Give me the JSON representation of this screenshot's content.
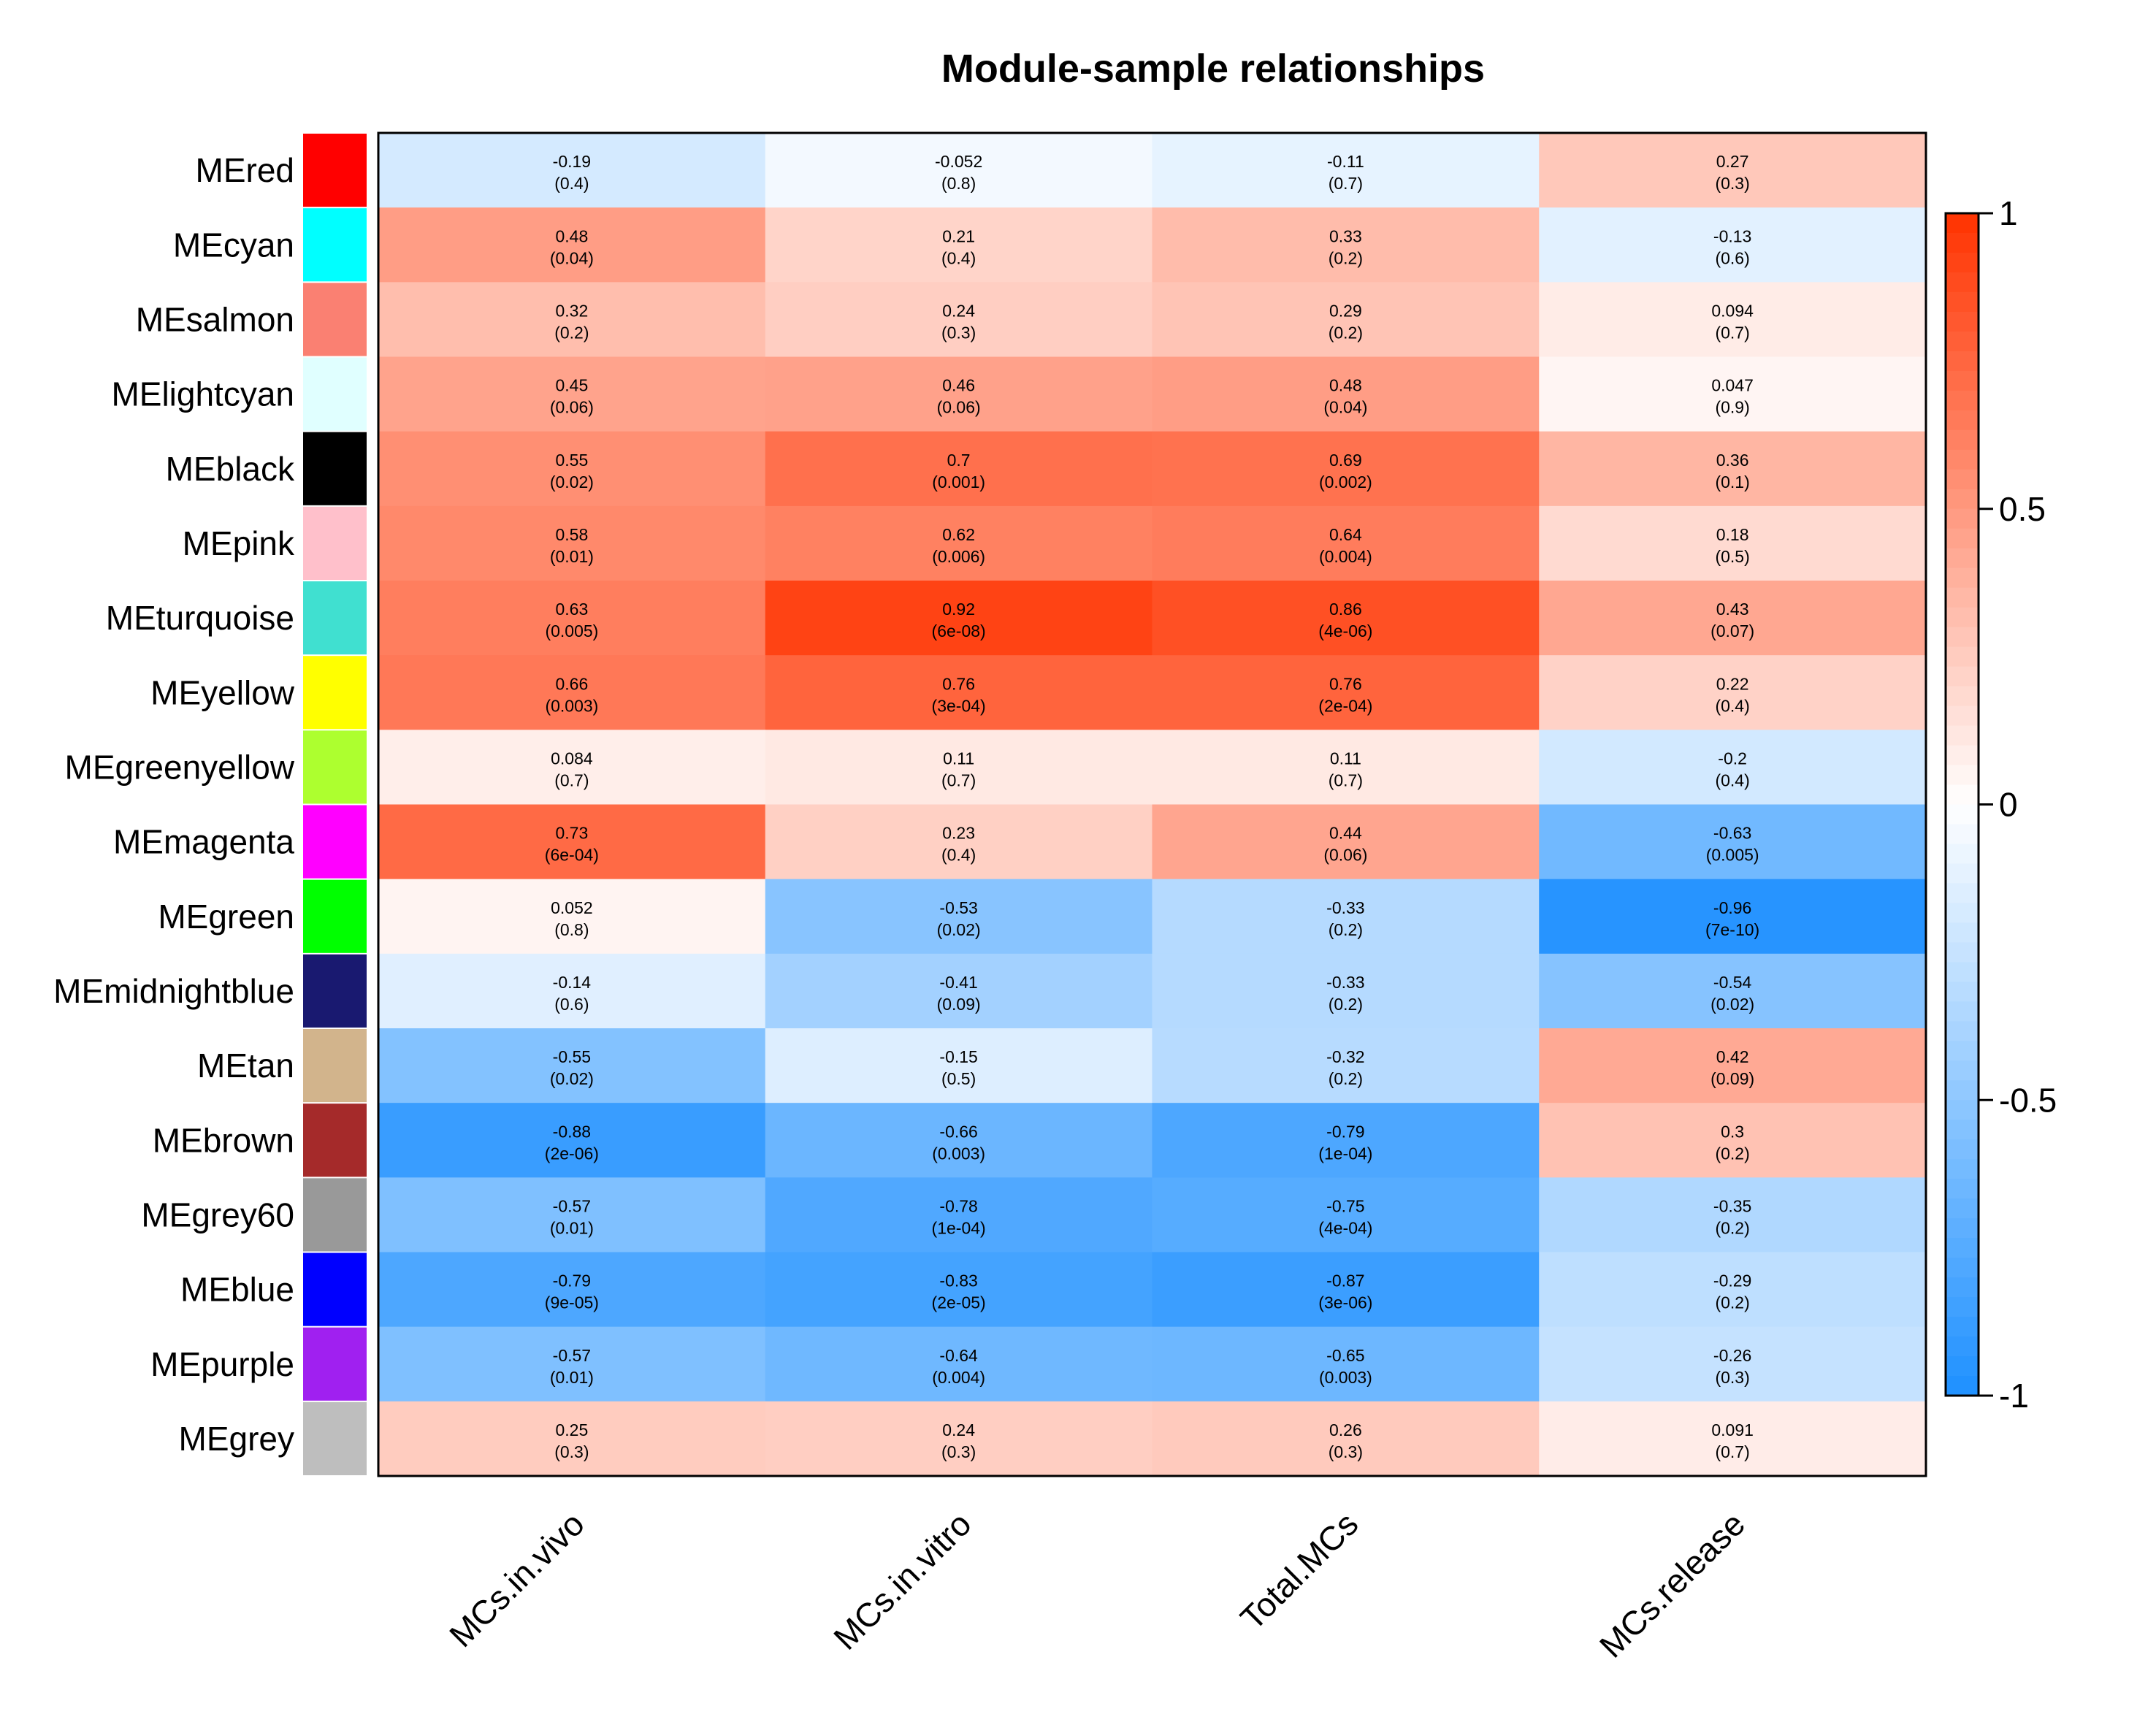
{
  "chart_data": {
    "type": "heatmap",
    "title": "Module-sample relationships",
    "columns": [
      "MCs.in.vivo",
      "MCs.in.vitro",
      "Total.MCs",
      "MCs.release"
    ],
    "rows": [
      {
        "name": "MEred",
        "color": "#ff0000",
        "values": [
          -0.19,
          -0.052,
          -0.11,
          0.27
        ],
        "labels": [
          "-0.19",
          "-0.052",
          "-0.11",
          "0.27"
        ],
        "pvalues": [
          "(0.4)",
          "(0.8)",
          "(0.7)",
          "(0.3)"
        ]
      },
      {
        "name": "MEcyan",
        "color": "#00ffff",
        "values": [
          0.48,
          0.21,
          0.33,
          -0.13
        ],
        "labels": [
          "0.48",
          "0.21",
          "0.33",
          "-0.13"
        ],
        "pvalues": [
          "(0.04)",
          "(0.4)",
          "(0.2)",
          "(0.6)"
        ]
      },
      {
        "name": "MEsalmon",
        "color": "#fa8072",
        "values": [
          0.32,
          0.24,
          0.29,
          0.094
        ],
        "labels": [
          "0.32",
          "0.24",
          "0.29",
          "0.094"
        ],
        "pvalues": [
          "(0.2)",
          "(0.3)",
          "(0.2)",
          "(0.7)"
        ]
      },
      {
        "name": "MElightcyan",
        "color": "#e0ffff",
        "values": [
          0.45,
          0.46,
          0.48,
          0.047
        ],
        "labels": [
          "0.45",
          "0.46",
          "0.48",
          "0.047"
        ],
        "pvalues": [
          "(0.06)",
          "(0.06)",
          "(0.04)",
          "(0.9)"
        ]
      },
      {
        "name": "MEblack",
        "color": "#000000",
        "values": [
          0.55,
          0.7,
          0.69,
          0.36
        ],
        "labels": [
          "0.55",
          "0.7",
          "0.69",
          "0.36"
        ],
        "pvalues": [
          "(0.02)",
          "(0.001)",
          "(0.002)",
          "(0.1)"
        ]
      },
      {
        "name": "MEpink",
        "color": "#ffc0cb",
        "values": [
          0.58,
          0.62,
          0.64,
          0.18
        ],
        "labels": [
          "0.58",
          "0.62",
          "0.64",
          "0.18"
        ],
        "pvalues": [
          "(0.01)",
          "(0.006)",
          "(0.004)",
          "(0.5)"
        ]
      },
      {
        "name": "MEturquoise",
        "color": "#40e0d0",
        "values": [
          0.63,
          0.92,
          0.86,
          0.43
        ],
        "labels": [
          "0.63",
          "0.92",
          "0.86",
          "0.43"
        ],
        "pvalues": [
          "(0.005)",
          "(6e-08)",
          "(4e-06)",
          "(0.07)"
        ]
      },
      {
        "name": "MEyellow",
        "color": "#ffff00",
        "values": [
          0.66,
          0.76,
          0.76,
          0.22
        ],
        "labels": [
          "0.66",
          "0.76",
          "0.76",
          "0.22"
        ],
        "pvalues": [
          "(0.003)",
          "(3e-04)",
          "(2e-04)",
          "(0.4)"
        ]
      },
      {
        "name": "MEgreenyellow",
        "color": "#adff2f",
        "values": [
          0.084,
          0.11,
          0.11,
          -0.2
        ],
        "labels": [
          "0.084",
          "0.11",
          "0.11",
          "-0.2"
        ],
        "pvalues": [
          "(0.7)",
          "(0.7)",
          "(0.7)",
          "(0.4)"
        ]
      },
      {
        "name": "MEmagenta",
        "color": "#ff00ff",
        "values": [
          0.73,
          0.23,
          0.44,
          -0.63
        ],
        "labels": [
          "0.73",
          "0.23",
          "0.44",
          "-0.63"
        ],
        "pvalues": [
          "(6e-04)",
          "(0.4)",
          "(0.06)",
          "(0.005)"
        ]
      },
      {
        "name": "MEgreen",
        "color": "#00ff00",
        "values": [
          0.052,
          -0.53,
          -0.33,
          -0.96
        ],
        "labels": [
          "0.052",
          "-0.53",
          "-0.33",
          "-0.96"
        ],
        "pvalues": [
          "(0.8)",
          "(0.02)",
          "(0.2)",
          "(7e-10)"
        ]
      },
      {
        "name": "MEmidnightblue",
        "color": "#191970",
        "values": [
          -0.14,
          -0.41,
          -0.33,
          -0.54
        ],
        "labels": [
          "-0.14",
          "-0.41",
          "-0.33",
          "-0.54"
        ],
        "pvalues": [
          "(0.6)",
          "(0.09)",
          "(0.2)",
          "(0.02)"
        ]
      },
      {
        "name": "MEtan",
        "color": "#d2b48c",
        "values": [
          -0.55,
          -0.15,
          -0.32,
          0.42
        ],
        "labels": [
          "-0.55",
          "-0.15",
          "-0.32",
          "0.42"
        ],
        "pvalues": [
          "(0.02)",
          "(0.5)",
          "(0.2)",
          "(0.09)"
        ]
      },
      {
        "name": "MEbrown",
        "color": "#a52a2a",
        "values": [
          -0.88,
          -0.66,
          -0.79,
          0.3
        ],
        "labels": [
          "-0.88",
          "-0.66",
          "-0.79",
          "0.3"
        ],
        "pvalues": [
          "(2e-06)",
          "(0.003)",
          "(1e-04)",
          "(0.2)"
        ]
      },
      {
        "name": "MEgrey60",
        "color": "#999999",
        "values": [
          -0.57,
          -0.78,
          -0.75,
          -0.35
        ],
        "labels": [
          "-0.57",
          "-0.78",
          "-0.75",
          "-0.35"
        ],
        "pvalues": [
          "(0.01)",
          "(1e-04)",
          "(4e-04)",
          "(0.2)"
        ]
      },
      {
        "name": "MEblue",
        "color": "#0000ff",
        "values": [
          -0.79,
          -0.83,
          -0.87,
          -0.29
        ],
        "labels": [
          "-0.79",
          "-0.83",
          "-0.87",
          "-0.29"
        ],
        "pvalues": [
          "(9e-05)",
          "(2e-05)",
          "(3e-06)",
          "(0.2)"
        ]
      },
      {
        "name": "MEpurple",
        "color": "#a020f0",
        "values": [
          -0.57,
          -0.64,
          -0.65,
          -0.26
        ],
        "labels": [
          "-0.57",
          "-0.64",
          "-0.65",
          "-0.26"
        ],
        "pvalues": [
          "(0.01)",
          "(0.004)",
          "(0.003)",
          "(0.3)"
        ]
      },
      {
        "name": "MEgrey",
        "color": "#bebebe",
        "values": [
          0.25,
          0.24,
          0.26,
          0.091
        ],
        "labels": [
          "0.25",
          "0.24",
          "0.26",
          "0.091"
        ],
        "pvalues": [
          "(0.3)",
          "(0.3)",
          "(0.3)",
          "(0.7)"
        ]
      }
    ],
    "colorbar": {
      "range": [
        -1,
        1
      ],
      "ticks": [
        1,
        0.5,
        0,
        -0.5,
        -1
      ],
      "tick_labels": [
        "1",
        "0.5",
        "0",
        "-0.5",
        "-1"
      ],
      "low_color": "#1e90ff",
      "mid_color": "#ffffff",
      "high_color": "#ff3300"
    },
    "grid": false,
    "legend": "colorbar-right"
  }
}
